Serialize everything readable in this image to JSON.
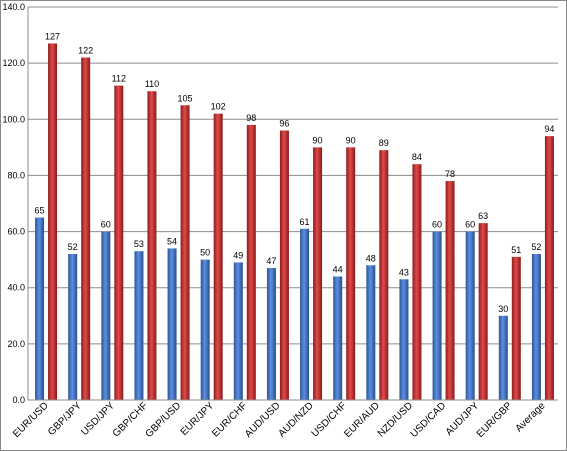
{
  "chart_data": {
    "type": "bar",
    "title": "",
    "xlabel": "",
    "ylabel": "",
    "ylim": [
      0,
      140
    ],
    "yticks": [
      "0.0",
      "20.0",
      "40.0",
      "60.0",
      "80.0",
      "100.0",
      "120.0",
      "140.0"
    ],
    "grid": true,
    "legend": "none",
    "categories": [
      "EUR/USD",
      "GBP/JPY",
      "USD/JPY",
      "GBP/CHF",
      "GBP/USD",
      "EUR/JPY",
      "EUR/CHF",
      "AUD/USD",
      "AUD/NZD",
      "USD/CHF",
      "EUR/AUD",
      "NZD/USD",
      "USD/CAD",
      "AUD/JPY",
      "EUR/GBP",
      "Average"
    ],
    "series": [
      {
        "color": "#4472C4",
        "values": [
          65,
          52,
          60,
          53,
          54,
          50,
          49,
          47,
          61,
          44,
          48,
          43,
          60,
          60,
          30,
          52
        ]
      },
      {
        "color": "#C0392B",
        "values": [
          127,
          122,
          112,
          110,
          105,
          102,
          98,
          96,
          90,
          90,
          89,
          84,
          78,
          63,
          51,
          94
        ]
      }
    ]
  }
}
